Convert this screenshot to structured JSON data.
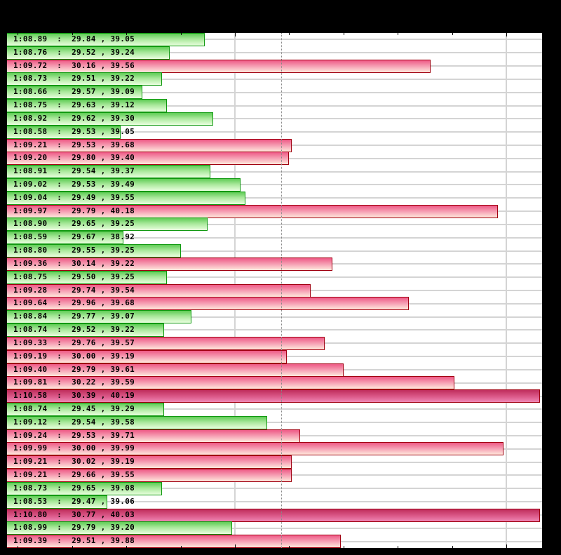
{
  "chart_data": {
    "type": "bar",
    "orientation": "horizontal",
    "title": "",
    "xlabel": "",
    "ylabel": "",
    "x_axis": {
      "min_seconds": 68.16,
      "max_seconds": 70.13,
      "major_gridlines_seconds": [
        69.0,
        70.0
      ],
      "minor_tick_step_seconds": 0.2,
      "reference_line_seconds": 69.17,
      "reference_line_style": "dotted"
    },
    "grid": true,
    "legend": null,
    "color_categories": {
      "g": "#66cc55",
      "p": "#f06088",
      "d": "#c8306a"
    },
    "rows": [
      {
        "label": "1:08.89  :  29.84 , 39.05",
        "time": "1:08.89",
        "seconds": 68.89,
        "split1": 29.84,
        "split2": 39.05,
        "cat": "g"
      },
      {
        "label": "1:08.76  :  29.52 , 39.24",
        "time": "1:08.76",
        "seconds": 68.76,
        "split1": 29.52,
        "split2": 39.24,
        "cat": "g"
      },
      {
        "label": "1:09.72  :  30.16 , 39.56",
        "time": "1:09.72",
        "seconds": 69.72,
        "split1": 30.16,
        "split2": 39.56,
        "cat": "p"
      },
      {
        "label": "1:08.73  :  29.51 , 39.22",
        "time": "1:08.73",
        "seconds": 68.73,
        "split1": 29.51,
        "split2": 39.22,
        "cat": "g"
      },
      {
        "label": "1:08.66  :  29.57 , 39.09",
        "time": "1:08.66",
        "seconds": 68.66,
        "split1": 29.57,
        "split2": 39.09,
        "cat": "g"
      },
      {
        "label": "1:08.75  :  29.63 , 39.12",
        "time": "1:08.75",
        "seconds": 68.75,
        "split1": 29.63,
        "split2": 39.12,
        "cat": "g"
      },
      {
        "label": "1:08.92  :  29.62 , 39.30",
        "time": "1:08.92",
        "seconds": 68.92,
        "split1": 29.62,
        "split2": 39.3,
        "cat": "g"
      },
      {
        "label": "1:08.58  :  29.53 , 39.05",
        "time": "1:08.58",
        "seconds": 68.58,
        "split1": 29.53,
        "split2": 39.05,
        "cat": "g"
      },
      {
        "label": "1:09.21  :  29.53 , 39.68",
        "time": "1:09.21",
        "seconds": 69.21,
        "split1": 29.53,
        "split2": 39.68,
        "cat": "p"
      },
      {
        "label": "1:09.20  :  29.80 , 39.40",
        "time": "1:09.20",
        "seconds": 69.2,
        "split1": 29.8,
        "split2": 39.4,
        "cat": "p"
      },
      {
        "label": "1:08.91  :  29.54 , 39.37",
        "time": "1:08.91",
        "seconds": 68.91,
        "split1": 29.54,
        "split2": 39.37,
        "cat": "g"
      },
      {
        "label": "1:09.02  :  29.53 , 39.49",
        "time": "1:09.02",
        "seconds": 69.02,
        "split1": 29.53,
        "split2": 39.49,
        "cat": "g"
      },
      {
        "label": "1:09.04  :  29.49 , 39.55",
        "time": "1:09.04",
        "seconds": 69.04,
        "split1": 29.49,
        "split2": 39.55,
        "cat": "g"
      },
      {
        "label": "1:09.97  :  29.79 , 40.18",
        "time": "1:09.97",
        "seconds": 69.97,
        "split1": 29.79,
        "split2": 40.18,
        "cat": "p"
      },
      {
        "label": "1:08.90  :  29.65 , 39.25",
        "time": "1:08.90",
        "seconds": 68.9,
        "split1": 29.65,
        "split2": 39.25,
        "cat": "g"
      },
      {
        "label": "1:08.59  :  29.67 , 38.92",
        "time": "1:08.59",
        "seconds": 68.59,
        "split1": 29.67,
        "split2": 38.92,
        "cat": "g"
      },
      {
        "label": "1:08.80  :  29.55 , 39.25",
        "time": "1:08.80",
        "seconds": 68.8,
        "split1": 29.55,
        "split2": 39.25,
        "cat": "g"
      },
      {
        "label": "1:09.36  :  30.14 , 39.22",
        "time": "1:09.36",
        "seconds": 69.36,
        "split1": 30.14,
        "split2": 39.22,
        "cat": "p"
      },
      {
        "label": "1:08.75  :  29.50 , 39.25",
        "time": "1:08.75",
        "seconds": 68.75,
        "split1": 29.5,
        "split2": 39.25,
        "cat": "g"
      },
      {
        "label": "1:09.28  :  29.74 , 39.54",
        "time": "1:09.28",
        "seconds": 69.28,
        "split1": 29.74,
        "split2": 39.54,
        "cat": "p"
      },
      {
        "label": "1:09.64  :  29.96 , 39.68",
        "time": "1:09.64",
        "seconds": 69.64,
        "split1": 29.96,
        "split2": 39.68,
        "cat": "p"
      },
      {
        "label": "1:08.84  :  29.77 , 39.07",
        "time": "1:08.84",
        "seconds": 68.84,
        "split1": 29.77,
        "split2": 39.07,
        "cat": "g"
      },
      {
        "label": "1:08.74  :  29.52 , 39.22",
        "time": "1:08.74",
        "seconds": 68.74,
        "split1": 29.52,
        "split2": 39.22,
        "cat": "g"
      },
      {
        "label": "1:09.33  :  29.76 , 39.57",
        "time": "1:09.33",
        "seconds": 69.33,
        "split1": 29.76,
        "split2": 39.57,
        "cat": "p"
      },
      {
        "label": "1:09.19  :  30.00 , 39.19",
        "time": "1:09.19",
        "seconds": 69.19,
        "split1": 30.0,
        "split2": 39.19,
        "cat": "p"
      },
      {
        "label": "1:09.40  :  29.79 , 39.61",
        "time": "1:09.40",
        "seconds": 69.4,
        "split1": 29.79,
        "split2": 39.61,
        "cat": "p"
      },
      {
        "label": "1:09.81  :  30.22 , 39.59",
        "time": "1:09.81",
        "seconds": 69.81,
        "split1": 30.22,
        "split2": 39.59,
        "cat": "p"
      },
      {
        "label": "1:10.58  :  30.39 , 40.19",
        "time": "1:10.58",
        "seconds": 70.58,
        "split1": 30.39,
        "split2": 40.19,
        "cat": "d"
      },
      {
        "label": "1:08.74  :  29.45 , 39.29",
        "time": "1:08.74",
        "seconds": 68.74,
        "split1": 29.45,
        "split2": 39.29,
        "cat": "g"
      },
      {
        "label": "1:09.12  :  29.54 , 39.58",
        "time": "1:09.12",
        "seconds": 69.12,
        "split1": 29.54,
        "split2": 39.58,
        "cat": "g"
      },
      {
        "label": "1:09.24  :  29.53 , 39.71",
        "time": "1:09.24",
        "seconds": 69.24,
        "split1": 29.53,
        "split2": 39.71,
        "cat": "p"
      },
      {
        "label": "1:09.99  :  30.00 , 39.99",
        "time": "1:09.99",
        "seconds": 69.99,
        "split1": 30.0,
        "split2": 39.99,
        "cat": "p"
      },
      {
        "label": "1:09.21  :  30.02 , 39.19",
        "time": "1:09.21",
        "seconds": 69.21,
        "split1": 30.02,
        "split2": 39.19,
        "cat": "p"
      },
      {
        "label": "1:09.21  :  29.66 , 39.55",
        "time": "1:09.21",
        "seconds": 69.21,
        "split1": 29.66,
        "split2": 39.55,
        "cat": "p"
      },
      {
        "label": "1:08.73  :  29.65 , 39.08",
        "time": "1:08.73",
        "seconds": 68.73,
        "split1": 29.65,
        "split2": 39.08,
        "cat": "g"
      },
      {
        "label": "1:08.53  :  29.47 , 39.06",
        "time": "1:08.53",
        "seconds": 68.53,
        "split1": 29.47,
        "split2": 39.06,
        "cat": "g"
      },
      {
        "label": "1:10.80  :  30.77 , 40.03",
        "time": "1:10.80",
        "seconds": 70.8,
        "split1": 30.77,
        "split2": 40.03,
        "cat": "d"
      },
      {
        "label": "1:08.99  :  29.79 , 39.20",
        "time": "1:08.99",
        "seconds": 68.99,
        "split1": 29.79,
        "split2": 39.2,
        "cat": "g"
      },
      {
        "label": "1:09.39  :  29.51 , 39.88",
        "time": "1:09.39",
        "seconds": 69.39,
        "split1": 29.51,
        "split2": 39.88,
        "cat": "p"
      }
    ]
  }
}
